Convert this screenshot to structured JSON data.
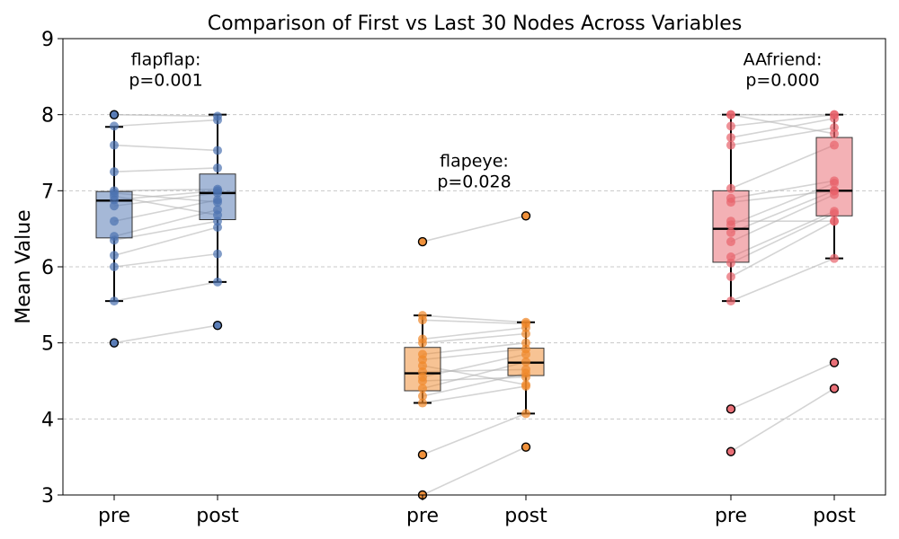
{
  "chart_data": {
    "type": "box",
    "title": "Comparison of First vs Last 30 Nodes Across Variables",
    "xlabel": "",
    "ylabel": "Mean Value",
    "ylim": [
      3,
      9
    ],
    "yticks": [
      "3",
      "4",
      "5",
      "6",
      "7",
      "8",
      "9"
    ],
    "grid": "y-dashed",
    "groups": [
      {
        "annotation_line1": "flapflap:",
        "annotation_line2": "p=0.001",
        "color": "#4c72b0",
        "boxes": [
          {
            "label": "pre",
            "q1": 6.38,
            "median": 6.87,
            "q3": 6.99,
            "whisker_low": 5.55,
            "whisker_high": 7.84
          },
          {
            "label": "post",
            "q1": 6.62,
            "median": 6.97,
            "q3": 7.22,
            "whisker_low": 5.8,
            "whisker_high": 8.0
          }
        ],
        "pairs": [
          [
            5.0,
            5.23
          ],
          [
            5.55,
            5.8
          ],
          [
            6.0,
            6.17
          ],
          [
            6.15,
            6.52
          ],
          [
            6.35,
            6.6
          ],
          [
            6.4,
            6.75
          ],
          [
            6.6,
            6.88
          ],
          [
            6.8,
            6.97
          ],
          [
            6.88,
            7.0
          ],
          [
            6.93,
            6.68
          ],
          [
            6.97,
            6.85
          ],
          [
            7.0,
            7.02
          ],
          [
            7.25,
            7.3
          ],
          [
            7.6,
            7.53
          ],
          [
            7.85,
            7.93
          ],
          [
            8.0,
            7.98
          ]
        ],
        "outliers": [
          [
            0,
            5.0
          ],
          [
            0,
            8.0
          ],
          [
            1,
            5.23
          ]
        ]
      },
      {
        "annotation_line1": "flapeye:",
        "annotation_line2": "p=0.028",
        "color": "#f0882a",
        "boxes": [
          {
            "label": "pre",
            "q1": 4.37,
            "median": 4.6,
            "q3": 4.94,
            "whisker_low": 4.21,
            "whisker_high": 5.36
          },
          {
            "label": "post",
            "q1": 4.57,
            "median": 4.74,
            "q3": 4.93,
            "whisker_low": 4.07,
            "whisker_high": 5.27
          }
        ],
        "pairs": [
          [
            3.0,
            3.63
          ],
          [
            3.53,
            4.07
          ],
          [
            4.21,
            4.43
          ],
          [
            4.3,
            4.6
          ],
          [
            4.4,
            4.75
          ],
          [
            4.5,
            4.55
          ],
          [
            4.55,
            4.85
          ],
          [
            4.62,
            4.65
          ],
          [
            4.7,
            4.45
          ],
          [
            4.78,
            4.92
          ],
          [
            4.85,
            5.0
          ],
          [
            5.0,
            5.12
          ],
          [
            5.05,
            5.2
          ],
          [
            5.3,
            5.25
          ],
          [
            5.36,
            5.27
          ],
          [
            6.33,
            6.67
          ]
        ],
        "outliers": [
          [
            0,
            6.33
          ],
          [
            0,
            3.53
          ],
          [
            0,
            3.0
          ],
          [
            1,
            6.67
          ],
          [
            1,
            3.63
          ]
        ]
      },
      {
        "annotation_line1": "AAfriend:",
        "annotation_line2": "p=0.000",
        "color": "#e8636b",
        "boxes": [
          {
            "label": "pre",
            "q1": 6.06,
            "median": 6.5,
            "q3": 7.0,
            "whisker_low": 5.55,
            "whisker_high": 8.0
          },
          {
            "label": "post",
            "q1": 6.67,
            "median": 7.0,
            "q3": 7.7,
            "whisker_low": 6.11,
            "whisker_high": 8.0
          }
        ],
        "pairs": [
          [
            3.57,
            4.4
          ],
          [
            4.13,
            4.74
          ],
          [
            5.55,
            6.11
          ],
          [
            5.87,
            6.6
          ],
          [
            6.05,
            6.7
          ],
          [
            6.13,
            6.73
          ],
          [
            6.33,
            6.95
          ],
          [
            6.45,
            7.0
          ],
          [
            6.55,
            7.1
          ],
          [
            6.6,
            6.6
          ],
          [
            6.85,
            7.0
          ],
          [
            6.9,
            7.13
          ],
          [
            7.03,
            7.6
          ],
          [
            7.6,
            7.83
          ],
          [
            7.7,
            7.95
          ],
          [
            7.85,
            8.0
          ],
          [
            8.0,
            7.75
          ],
          [
            8.0,
            8.0
          ]
        ],
        "outliers": [
          [
            0,
            4.13
          ],
          [
            0,
            3.57
          ],
          [
            1,
            4.74
          ],
          [
            1,
            4.4
          ]
        ]
      }
    ]
  }
}
